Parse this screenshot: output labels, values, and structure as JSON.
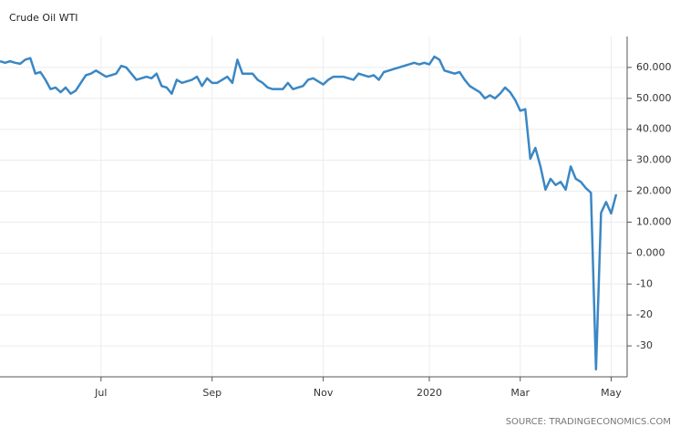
{
  "chart_data": {
    "type": "line",
    "title": "Crude Oil WTI",
    "source": "SOURCE: TRADINGECONOMICS.COM",
    "categories": [
      null,
      null,
      null,
      null,
      null,
      null,
      null,
      null,
      null,
      null,
      null,
      null,
      null,
      null,
      null,
      null,
      null,
      null,
      null,
      null,
      "Jul",
      null,
      null,
      null,
      null,
      null,
      null,
      null,
      null,
      null,
      null,
      null,
      null,
      null,
      null,
      null,
      null,
      null,
      null,
      null,
      null,
      null,
      "Sep",
      null,
      null,
      null,
      null,
      null,
      null,
      null,
      null,
      null,
      null,
      null,
      null,
      null,
      null,
      null,
      null,
      null,
      null,
      null,
      null,
      null,
      "Nov",
      null,
      null,
      null,
      null,
      null,
      null,
      null,
      null,
      null,
      null,
      null,
      null,
      null,
      null,
      null,
      null,
      null,
      null,
      null,
      null,
      "2020",
      null,
      null,
      null,
      null,
      null,
      null,
      null,
      null,
      null,
      null,
      null,
      null,
      null,
      null,
      null,
      null,
      null,
      "Mar",
      null,
      null,
      null,
      null,
      null,
      null,
      null,
      null,
      null,
      null,
      null,
      null,
      null,
      null,
      null,
      null,
      null,
      "May",
      null
    ],
    "series": [
      {
        "name": "Crude Oil WTI",
        "color": "#3b87c4",
        "values": [
          62.0,
          61.5,
          62.0,
          61.5,
          61.2,
          62.5,
          63.0,
          58.0,
          58.5,
          56.0,
          53.0,
          53.5,
          52.0,
          53.5,
          51.5,
          52.5,
          55.0,
          57.5,
          58.0,
          59.0,
          58.0,
          57.0,
          57.5,
          58.0,
          60.5,
          60.0,
          58.0,
          56.0,
          56.5,
          57.0,
          56.5,
          58.0,
          54.0,
          53.5,
          51.5,
          56.0,
          55.0,
          55.5,
          56.0,
          57.0,
          54.0,
          56.5,
          55.0,
          55.0,
          56.0,
          57.0,
          55.0,
          62.5,
          58.0,
          58.0,
          58.0,
          56.0,
          55.0,
          53.5,
          53.0,
          53.0,
          53.0,
          55.0,
          53.0,
          53.5,
          54.0,
          56.0,
          56.5,
          55.5,
          54.5,
          56.0,
          57.0,
          57.0,
          57.0,
          56.5,
          56.0,
          58.0,
          57.5,
          57.0,
          57.5,
          56.0,
          58.5,
          59.0,
          59.5,
          60.0,
          60.5,
          61.0,
          61.5,
          61.0,
          61.5,
          61.0,
          63.5,
          62.5,
          59.0,
          58.5,
          58.0,
          58.5,
          56.0,
          54.0,
          53.0,
          52.0,
          50.0,
          51.0,
          50.0,
          51.5,
          53.5,
          52.0,
          49.5,
          46.0,
          46.5,
          30.5,
          34.0,
          28.0,
          20.5,
          24.0,
          22.0,
          23.0,
          20.5,
          28.0,
          24.0,
          23.0,
          21.0,
          19.5,
          -37.6,
          13.0,
          16.5,
          12.8,
          19.0
        ]
      }
    ],
    "ylim": [
      -40,
      70
    ],
    "yticks": [
      -30,
      -20,
      -10,
      {
        "value": 0,
        "label": "0.000"
      },
      {
        "value": 10,
        "label": "10.000"
      },
      {
        "value": 20,
        "label": "20.000"
      },
      {
        "value": 30,
        "label": "30.000"
      },
      {
        "value": 40,
        "label": "40.000"
      },
      {
        "value": 50,
        "label": "50.000"
      },
      {
        "value": 60,
        "label": "60.000"
      }
    ],
    "grid": true
  }
}
